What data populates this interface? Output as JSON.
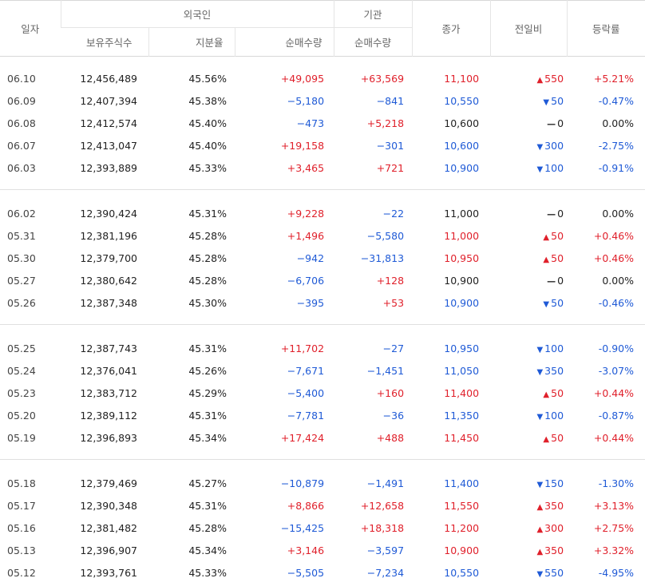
{
  "header": {
    "date": "일자",
    "foreign": "외국인",
    "institution": "기관",
    "close": "종가",
    "change": "전일비",
    "rate": "등락률",
    "holdings": "보유주식수",
    "share": "지분율",
    "foreign_net": "순매수량",
    "inst_net": "순매수량"
  },
  "colors": {
    "up": "#e0202b",
    "down": "#1f5ad6",
    "flat": "#222222"
  },
  "groups": [
    [
      {
        "date": "06.10",
        "holdings": "12,456,489",
        "share": "45.56%",
        "foreign_net": "+49,095",
        "inst_net": "+63,569",
        "close": "11,100",
        "change": "550",
        "dir": "up",
        "rate": "+5.21%"
      },
      {
        "date": "06.09",
        "holdings": "12,407,394",
        "share": "45.38%",
        "foreign_net": "−5,180",
        "inst_net": "−841",
        "close": "10,550",
        "change": "50",
        "dir": "down",
        "rate": "-0.47%"
      },
      {
        "date": "06.08",
        "holdings": "12,412,574",
        "share": "45.40%",
        "foreign_net": "−473",
        "inst_net": "+5,218",
        "close": "10,600",
        "change": "0",
        "dir": "flat",
        "rate": "0.00%"
      },
      {
        "date": "06.07",
        "holdings": "12,413,047",
        "share": "45.40%",
        "foreign_net": "+19,158",
        "inst_net": "−301",
        "close": "10,600",
        "change": "300",
        "dir": "down",
        "rate": "-2.75%"
      },
      {
        "date": "06.03",
        "holdings": "12,393,889",
        "share": "45.33%",
        "foreign_net": "+3,465",
        "inst_net": "+721",
        "close": "10,900",
        "change": "100",
        "dir": "down",
        "rate": "-0.91%"
      }
    ],
    [
      {
        "date": "06.02",
        "holdings": "12,390,424",
        "share": "45.31%",
        "foreign_net": "+9,228",
        "inst_net": "−22",
        "close": "11,000",
        "change": "0",
        "dir": "flat",
        "rate": "0.00%"
      },
      {
        "date": "05.31",
        "holdings": "12,381,196",
        "share": "45.28%",
        "foreign_net": "+1,496",
        "inst_net": "−5,580",
        "close": "11,000",
        "change": "50",
        "dir": "up",
        "rate": "+0.46%"
      },
      {
        "date": "05.30",
        "holdings": "12,379,700",
        "share": "45.28%",
        "foreign_net": "−942",
        "inst_net": "−31,813",
        "close": "10,950",
        "change": "50",
        "dir": "up",
        "rate": "+0.46%"
      },
      {
        "date": "05.27",
        "holdings": "12,380,642",
        "share": "45.28%",
        "foreign_net": "−6,706",
        "inst_net": "+128",
        "close": "10,900",
        "change": "0",
        "dir": "flat",
        "rate": "0.00%"
      },
      {
        "date": "05.26",
        "holdings": "12,387,348",
        "share": "45.30%",
        "foreign_net": "−395",
        "inst_net": "+53",
        "close": "10,900",
        "change": "50",
        "dir": "down",
        "rate": "-0.46%"
      }
    ],
    [
      {
        "date": "05.25",
        "holdings": "12,387,743",
        "share": "45.31%",
        "foreign_net": "+11,702",
        "inst_net": "−27",
        "close": "10,950",
        "change": "100",
        "dir": "down",
        "rate": "-0.90%"
      },
      {
        "date": "05.24",
        "holdings": "12,376,041",
        "share": "45.26%",
        "foreign_net": "−7,671",
        "inst_net": "−1,451",
        "close": "11,050",
        "change": "350",
        "dir": "down",
        "rate": "-3.07%"
      },
      {
        "date": "05.23",
        "holdings": "12,383,712",
        "share": "45.29%",
        "foreign_net": "−5,400",
        "inst_net": "+160",
        "close": "11,400",
        "change": "50",
        "dir": "up",
        "rate": "+0.44%"
      },
      {
        "date": "05.20",
        "holdings": "12,389,112",
        "share": "45.31%",
        "foreign_net": "−7,781",
        "inst_net": "−36",
        "close": "11,350",
        "change": "100",
        "dir": "down",
        "rate": "-0.87%"
      },
      {
        "date": "05.19",
        "holdings": "12,396,893",
        "share": "45.34%",
        "foreign_net": "+17,424",
        "inst_net": "+488",
        "close": "11,450",
        "change": "50",
        "dir": "up",
        "rate": "+0.44%"
      }
    ],
    [
      {
        "date": "05.18",
        "holdings": "12,379,469",
        "share": "45.27%",
        "foreign_net": "−10,879",
        "inst_net": "−1,491",
        "close": "11,400",
        "change": "150",
        "dir": "down",
        "rate": "-1.30%"
      },
      {
        "date": "05.17",
        "holdings": "12,390,348",
        "share": "45.31%",
        "foreign_net": "+8,866",
        "inst_net": "+12,658",
        "close": "11,550",
        "change": "350",
        "dir": "up",
        "rate": "+3.13%"
      },
      {
        "date": "05.16",
        "holdings": "12,381,482",
        "share": "45.28%",
        "foreign_net": "−15,425",
        "inst_net": "+18,318",
        "close": "11,200",
        "change": "300",
        "dir": "up",
        "rate": "+2.75%"
      },
      {
        "date": "05.13",
        "holdings": "12,396,907",
        "share": "45.34%",
        "foreign_net": "+3,146",
        "inst_net": "−3,597",
        "close": "10,900",
        "change": "350",
        "dir": "up",
        "rate": "+3.32%"
      },
      {
        "date": "05.12",
        "holdings": "12,393,761",
        "share": "45.33%",
        "foreign_net": "−5,505",
        "inst_net": "−7,234",
        "close": "10,550",
        "change": "550",
        "dir": "down",
        "rate": "-4.95%"
      }
    ]
  ]
}
